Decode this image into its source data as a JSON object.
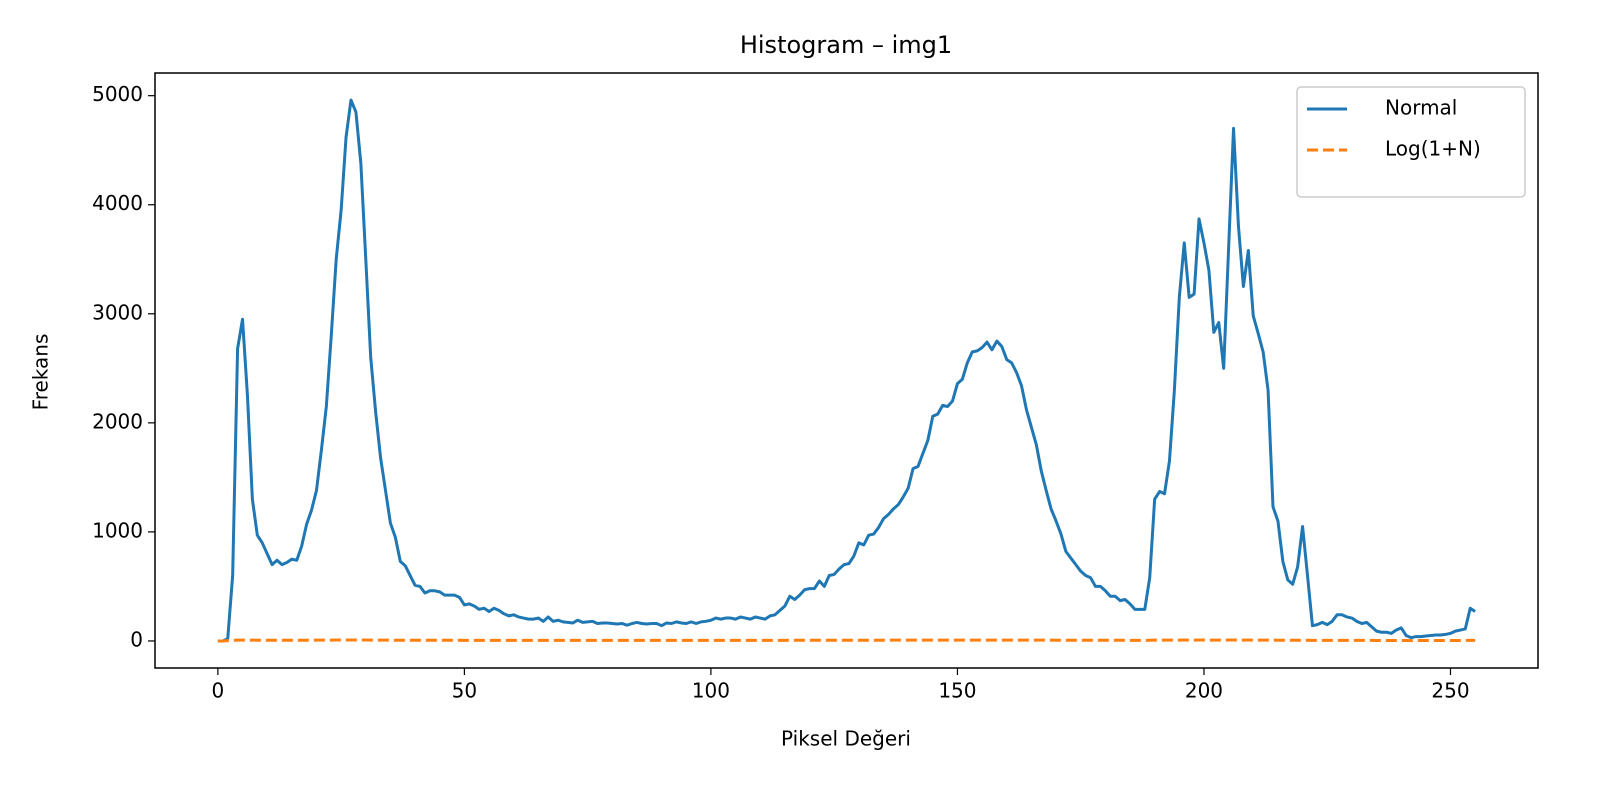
{
  "chart_data": {
    "type": "line",
    "title": "Histogram – img1",
    "x_label": "Piksel Değeri",
    "y_label": "Frekans",
    "x": [
      0,
      1,
      2,
      3,
      4,
      5,
      6,
      7,
      8,
      9,
      10,
      11,
      12,
      13,
      14,
      15,
      16,
      17,
      18,
      19,
      20,
      21,
      22,
      23,
      24,
      25,
      26,
      27,
      28,
      29,
      30,
      31,
      32,
      33,
      34,
      35,
      36,
      37,
      38,
      39,
      40,
      41,
      42,
      43,
      44,
      45,
      46,
      47,
      48,
      49,
      50,
      51,
      52,
      53,
      54,
      55,
      56,
      57,
      58,
      59,
      60,
      61,
      62,
      63,
      64,
      65,
      66,
      67,
      68,
      69,
      70,
      71,
      72,
      73,
      74,
      75,
      76,
      77,
      78,
      79,
      80,
      81,
      82,
      83,
      84,
      85,
      86,
      87,
      88,
      89,
      90,
      91,
      92,
      93,
      94,
      95,
      96,
      97,
      98,
      99,
      100,
      101,
      102,
      103,
      104,
      105,
      106,
      107,
      108,
      109,
      110,
      111,
      112,
      113,
      114,
      115,
      116,
      117,
      118,
      119,
      120,
      121,
      122,
      123,
      124,
      125,
      126,
      127,
      128,
      129,
      130,
      131,
      132,
      133,
      134,
      135,
      136,
      137,
      138,
      139,
      140,
      141,
      142,
      143,
      144,
      145,
      146,
      147,
      148,
      149,
      150,
      151,
      152,
      153,
      154,
      155,
      156,
      157,
      158,
      159,
      160,
      161,
      162,
      163,
      164,
      165,
      166,
      167,
      168,
      169,
      170,
      171,
      172,
      173,
      174,
      175,
      176,
      177,
      178,
      179,
      180,
      181,
      182,
      183,
      184,
      185,
      186,
      187,
      188,
      189,
      190,
      191,
      192,
      193,
      194,
      195,
      196,
      197,
      198,
      199,
      200,
      201,
      202,
      203,
      204,
      205,
      206,
      207,
      208,
      209,
      210,
      211,
      212,
      213,
      214,
      215,
      216,
      217,
      218,
      219,
      220,
      221,
      222,
      223,
      224,
      225,
      226,
      227,
      228,
      229,
      230,
      231,
      232,
      233,
      234,
      235,
      236,
      237,
      238,
      239,
      240,
      241,
      242,
      243,
      244,
      245,
      246,
      247,
      248,
      249,
      250,
      251,
      252,
      253,
      254,
      255
    ],
    "series": [
      {
        "name": "Normal",
        "color": "#1f77b4",
        "linestyle": "solid",
        "values": [
          0,
          0,
          20,
          600,
          2680,
          2950,
          2250,
          1300,
          970,
          900,
          800,
          700,
          740,
          700,
          720,
          750,
          740,
          870,
          1070,
          1200,
          1380,
          1750,
          2150,
          2800,
          3500,
          3950,
          4620,
          4960,
          4850,
          4380,
          3500,
          2600,
          2100,
          1680,
          1380,
          1080,
          950,
          730,
          690,
          600,
          510,
          500,
          440,
          460,
          460,
          450,
          420,
          420,
          420,
          400,
          330,
          340,
          320,
          290,
          300,
          270,
          300,
          280,
          250,
          230,
          240,
          220,
          210,
          200,
          200,
          210,
          180,
          220,
          180,
          190,
          175,
          170,
          165,
          190,
          170,
          175,
          180,
          160,
          165,
          165,
          160,
          155,
          160,
          145,
          160,
          170,
          160,
          155,
          160,
          160,
          140,
          165,
          160,
          175,
          165,
          160,
          175,
          160,
          175,
          180,
          190,
          210,
          200,
          210,
          210,
          200,
          220,
          210,
          200,
          220,
          210,
          200,
          230,
          240,
          280,
          320,
          410,
          380,
          420,
          470,
          480,
          480,
          550,
          500,
          600,
          610,
          660,
          700,
          710,
          780,
          900,
          880,
          970,
          980,
          1040,
          1120,
          1160,
          1210,
          1250,
          1320,
          1400,
          1580,
          1600,
          1720,
          1840,
          2060,
          2080,
          2160,
          2150,
          2200,
          2360,
          2400,
          2550,
          2650,
          2660,
          2690,
          2740,
          2670,
          2750,
          2700,
          2580,
          2550,
          2460,
          2340,
          2120,
          1960,
          1800,
          1560,
          1380,
          1210,
          1100,
          980,
          820,
          760,
          700,
          640,
          600,
          580,
          500,
          500,
          460,
          410,
          410,
          370,
          380,
          340,
          290,
          290,
          290,
          580,
          1300,
          1370,
          1350,
          1650,
          2300,
          3150,
          3650,
          3150,
          3180,
          3870,
          3650,
          3400,
          2830,
          2920,
          2500,
          3600,
          4700,
          3800,
          3250,
          3580,
          2980,
          2820,
          2650,
          2300,
          1230,
          1100,
          730,
          560,
          520,
          680,
          1050,
          600,
          140,
          150,
          170,
          150,
          180,
          240,
          240,
          220,
          210,
          180,
          160,
          170,
          130,
          90,
          80,
          80,
          70,
          100,
          120,
          50,
          30,
          40,
          40,
          45,
          50,
          55,
          55,
          60,
          70,
          90,
          100,
          110,
          300,
          270
        ]
      },
      {
        "name": "Log(1+N)",
        "color": "#ff7f0e",
        "linestyle": "dashed",
        "values": [
          0,
          0,
          3.04,
          6.4,
          7.89,
          7.99,
          7.72,
          7.17,
          6.88,
          6.8,
          6.69,
          6.55,
          6.61,
          6.55,
          6.58,
          6.62,
          6.61,
          6.77,
          6.98,
          7.09,
          7.23,
          7.47,
          7.67,
          7.94,
          8.16,
          8.28,
          8.44,
          8.51,
          8.49,
          8.38,
          8.16,
          7.86,
          7.65,
          7.43,
          7.23,
          6.99,
          6.86,
          6.59,
          6.54,
          6.4,
          6.24,
          6.22,
          6.09,
          6.13,
          6.13,
          6.11,
          6.04,
          6.04,
          6.04,
          5.99,
          5.8,
          5.83,
          5.77,
          5.67,
          5.71,
          5.6,
          5.71,
          5.64,
          5.53,
          5.44,
          5.48,
          5.4,
          5.35,
          5.3,
          5.3,
          5.35,
          5.2,
          5.4,
          5.2,
          5.25,
          5.17,
          5.14,
          5.11,
          5.25,
          5.14,
          5.17,
          5.2,
          5.08,
          5.11,
          5.11,
          5.08,
          5.05,
          5.08,
          4.98,
          5.08,
          5.14,
          5.08,
          5.05,
          5.08,
          5.08,
          4.95,
          5.11,
          5.08,
          5.17,
          5.11,
          5.08,
          5.17,
          5.08,
          5.17,
          5.2,
          5.25,
          5.35,
          5.3,
          5.35,
          5.35,
          5.3,
          5.4,
          5.35,
          5.3,
          5.4,
          5.35,
          5.3,
          5.44,
          5.48,
          5.64,
          5.77,
          6.02,
          5.94,
          6.04,
          6.15,
          6.18,
          6.18,
          6.31,
          6.22,
          6.4,
          6.42,
          6.49,
          6.55,
          6.57,
          6.66,
          6.8,
          6.78,
          6.88,
          6.89,
          6.95,
          7.02,
          7.06,
          7.1,
          7.13,
          7.19,
          7.25,
          7.37,
          7.38,
          7.45,
          7.52,
          7.63,
          7.64,
          7.68,
          7.67,
          7.7,
          7.77,
          7.78,
          7.84,
          7.88,
          7.89,
          7.9,
          7.92,
          7.89,
          7.92,
          7.9,
          7.86,
          7.84,
          7.81,
          7.76,
          7.66,
          7.58,
          7.5,
          7.35,
          7.23,
          7.1,
          7.0,
          6.89,
          6.71,
          6.63,
          6.55,
          6.46,
          6.4,
          6.36,
          6.22,
          6.22,
          6.13,
          6.02,
          6.02,
          5.92,
          5.94,
          5.83,
          5.67,
          5.67,
          5.67,
          6.36,
          7.17,
          7.23,
          7.21,
          7.41,
          7.74,
          8.06,
          8.2,
          8.06,
          8.06,
          8.26,
          8.2,
          8.13,
          7.95,
          7.98,
          7.82,
          8.19,
          8.46,
          8.24,
          8.09,
          8.18,
          8.0,
          7.94,
          7.88,
          7.74,
          7.12,
          7.0,
          6.59,
          6.33,
          6.26,
          6.52,
          6.96,
          6.4,
          4.95,
          5.02,
          5.14,
          5.02,
          5.2,
          5.48,
          5.48,
          5.4,
          5.35,
          5.2,
          5.08,
          5.14,
          4.88,
          4.51,
          4.39,
          4.39,
          4.26,
          4.62,
          4.8,
          3.93,
          3.43,
          3.71,
          3.71,
          3.83,
          3.93,
          4.03,
          4.03,
          4.11,
          4.26,
          4.51,
          4.62,
          4.71,
          5.71,
          5.6
        ]
      }
    ],
    "xlim": [
      -12.75,
      267.75
    ],
    "xticks": [
      0,
      50,
      100,
      150,
      200,
      250
    ],
    "ylim": [
      -248,
      5208
    ],
    "yticks": [
      0,
      1000,
      2000,
      3000,
      4000,
      5000
    ],
    "grid": false,
    "legend": "upper right"
  }
}
